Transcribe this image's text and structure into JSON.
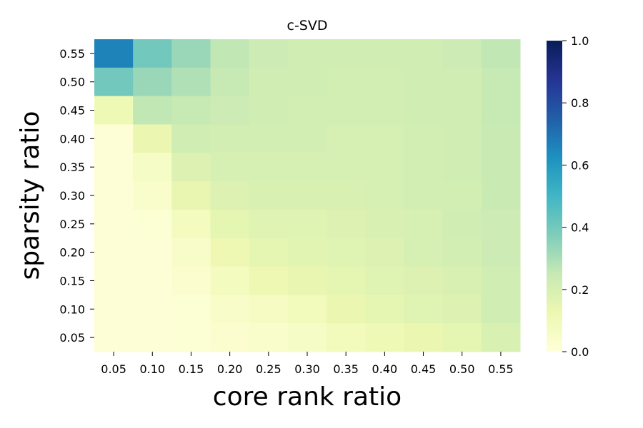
{
  "chart_data": {
    "type": "heatmap",
    "title": "c-SVD",
    "xlabel": "core rank ratio",
    "ylabel": "sparsity ratio",
    "x_ticks": [
      "0.05",
      "0.10",
      "0.15",
      "0.20",
      "0.25",
      "0.30",
      "0.35",
      "0.40",
      "0.45",
      "0.50",
      "0.55"
    ],
    "y_ticks": [
      "0.55",
      "0.50",
      "0.45",
      "0.40",
      "0.35",
      "0.30",
      "0.25",
      "0.20",
      "0.15",
      "0.10",
      "0.05"
    ],
    "values": [
      [
        0.66,
        0.4,
        0.33,
        0.26,
        0.23,
        0.22,
        0.22,
        0.22,
        0.22,
        0.23,
        0.26
      ],
      [
        0.4,
        0.33,
        0.29,
        0.25,
        0.22,
        0.22,
        0.21,
        0.21,
        0.22,
        0.22,
        0.25
      ],
      [
        0.11,
        0.26,
        0.25,
        0.23,
        0.22,
        0.21,
        0.21,
        0.21,
        0.22,
        0.22,
        0.25
      ],
      [
        0.01,
        0.13,
        0.22,
        0.21,
        0.21,
        0.21,
        0.2,
        0.2,
        0.21,
        0.22,
        0.24
      ],
      [
        0.01,
        0.06,
        0.18,
        0.2,
        0.2,
        0.2,
        0.2,
        0.2,
        0.21,
        0.22,
        0.24
      ],
      [
        0.01,
        0.04,
        0.14,
        0.18,
        0.19,
        0.19,
        0.19,
        0.2,
        0.21,
        0.21,
        0.24
      ],
      [
        0.01,
        0.02,
        0.08,
        0.15,
        0.17,
        0.17,
        0.18,
        0.19,
        0.2,
        0.22,
        0.23
      ],
      [
        0.01,
        0.01,
        0.05,
        0.12,
        0.15,
        0.16,
        0.17,
        0.18,
        0.2,
        0.21,
        0.23
      ],
      [
        0.01,
        0.01,
        0.03,
        0.08,
        0.12,
        0.14,
        0.15,
        0.17,
        0.18,
        0.19,
        0.22
      ],
      [
        0.01,
        0.01,
        0.02,
        0.05,
        0.07,
        0.09,
        0.13,
        0.15,
        0.17,
        0.18,
        0.22
      ],
      [
        0.01,
        0.01,
        0.02,
        0.03,
        0.04,
        0.06,
        0.09,
        0.11,
        0.13,
        0.15,
        0.19
      ]
    ],
    "colorbar": {
      "min": 0.0,
      "max": 1.0,
      "ticks": [
        "0.0",
        "0.2",
        "0.4",
        "0.6",
        "0.8",
        "1.0"
      ],
      "colormap": "YlGnBu",
      "stops": [
        "#ffffd9",
        "#edf8b1",
        "#c7e9b4",
        "#7fcdbb",
        "#41b6c4",
        "#1d91c0",
        "#225ea8",
        "#253494",
        "#081d58"
      ]
    }
  }
}
